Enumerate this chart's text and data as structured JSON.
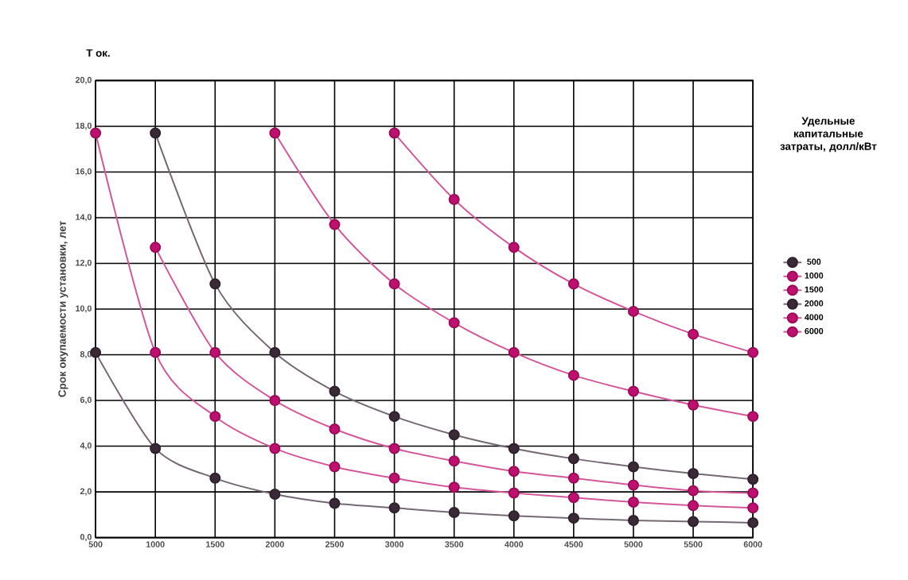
{
  "chart_data": {
    "type": "line",
    "title": "Т ок.",
    "ylabel": "Срок окупаемости установки, лет",
    "legend_title": "Удельные капитальные затраты, долл/кВт",
    "x": [
      500,
      1000,
      1500,
      2000,
      2500,
      3000,
      3500,
      4000,
      4500,
      5000,
      5500,
      6000
    ],
    "series": [
      {
        "name": "500",
        "color": "#3a2a38",
        "values": [
          8.1,
          3.9,
          2.6,
          1.9,
          1.5,
          1.3,
          1.1,
          0.95,
          0.85,
          0.75,
          0.7,
          0.65
        ]
      },
      {
        "name": "1000",
        "color": "#c0106f",
        "values": [
          17.7,
          8.1,
          5.3,
          3.9,
          3.1,
          2.6,
          2.2,
          1.95,
          1.75,
          1.55,
          1.4,
          1.3
        ]
      },
      {
        "name": "1500",
        "color": "#c0106f",
        "values": [
          null,
          12.7,
          8.1,
          6.0,
          4.75,
          3.9,
          3.35,
          2.9,
          2.6,
          2.3,
          2.05,
          1.95
        ]
      },
      {
        "name": "2000",
        "color": "#3a2a38",
        "values": [
          null,
          17.7,
          11.1,
          8.1,
          6.4,
          5.3,
          4.5,
          3.9,
          3.45,
          3.1,
          2.8,
          2.55
        ]
      },
      {
        "name": "4000",
        "color": "#c0106f",
        "values": [
          null,
          null,
          null,
          17.7,
          13.7,
          11.1,
          9.4,
          8.1,
          7.1,
          6.4,
          5.8,
          5.3
        ]
      },
      {
        "name": "6000",
        "color": "#c0106f",
        "values": [
          null,
          null,
          null,
          null,
          null,
          17.7,
          14.8,
          12.7,
          11.1,
          9.9,
          8.9,
          8.1
        ]
      }
    ],
    "xlim": [
      500,
      6000
    ],
    "ylim": [
      0,
      20
    ],
    "xticks": [
      500,
      1000,
      1500,
      2000,
      2500,
      3000,
      3500,
      4000,
      4500,
      5000,
      5500,
      6000
    ],
    "yticks": [
      {
        "value": 0,
        "label": "0,0"
      },
      {
        "value": 2,
        "label": "2,0"
      },
      {
        "value": 4,
        "label": "4,0"
      },
      {
        "value": 6,
        "label": "6,0"
      },
      {
        "value": 8,
        "label": "8,0"
      },
      {
        "value": 10,
        "label": "10,0"
      },
      {
        "value": 12,
        "label": "12,0"
      },
      {
        "value": 14,
        "label": "14,0"
      },
      {
        "value": 16,
        "label": "16,0"
      },
      {
        "value": 18,
        "label": "18,0"
      },
      {
        "value": 20,
        "label": "20,0"
      }
    ],
    "grid": true,
    "legend": "right",
    "marker": "circle",
    "line_style": "solid"
  }
}
